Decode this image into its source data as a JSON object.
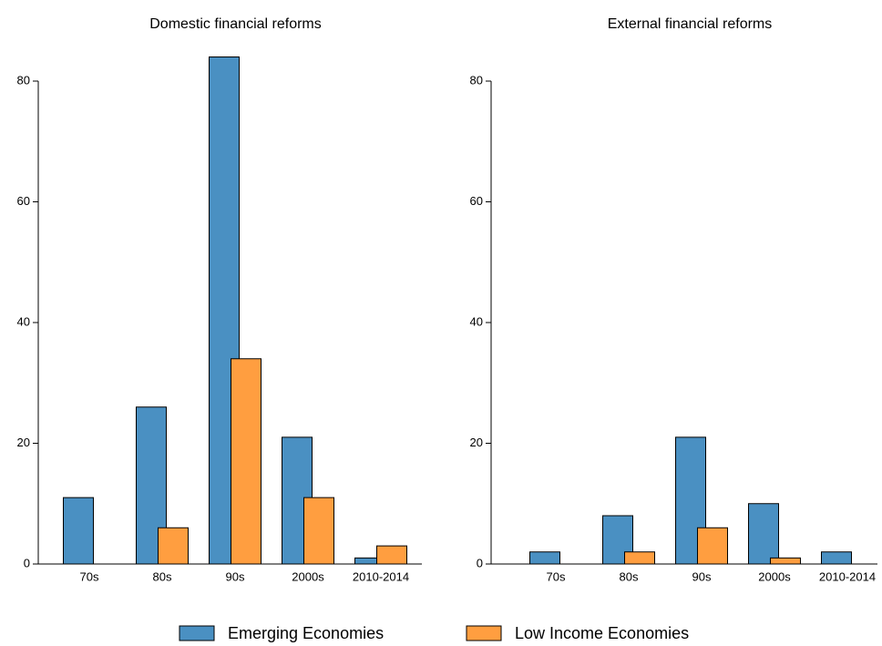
{
  "chart_data": [
    {
      "type": "bar",
      "title": "Domestic financial reforms",
      "categories": [
        "70s",
        "80s",
        "90s",
        "2000s",
        "2010-2014"
      ],
      "series": [
        {
          "name": "Emerging Economies",
          "color": "#4a90c2",
          "values": [
            11,
            26,
            84,
            21,
            1
          ]
        },
        {
          "name": "Low Income Economies",
          "color": "#ff9e40",
          "values": [
            0,
            6,
            34,
            11,
            3
          ]
        }
      ],
      "ylim": [
        0,
        80
      ],
      "yticks": [
        0,
        20,
        40,
        60,
        80
      ]
    },
    {
      "type": "bar",
      "title": "External financial reforms",
      "categories": [
        "70s",
        "80s",
        "90s",
        "2000s",
        "2010-2014"
      ],
      "series": [
        {
          "name": "Emerging Economies",
          "color": "#4a90c2",
          "values": [
            2,
            8,
            21,
            10,
            2
          ]
        },
        {
          "name": "Low Income Economies",
          "color": "#ff9e40",
          "values": [
            0,
            2,
            6,
            1,
            0
          ]
        }
      ],
      "ylim": [
        0,
        80
      ],
      "yticks": [
        0,
        20,
        40,
        60,
        80
      ]
    }
  ]
}
